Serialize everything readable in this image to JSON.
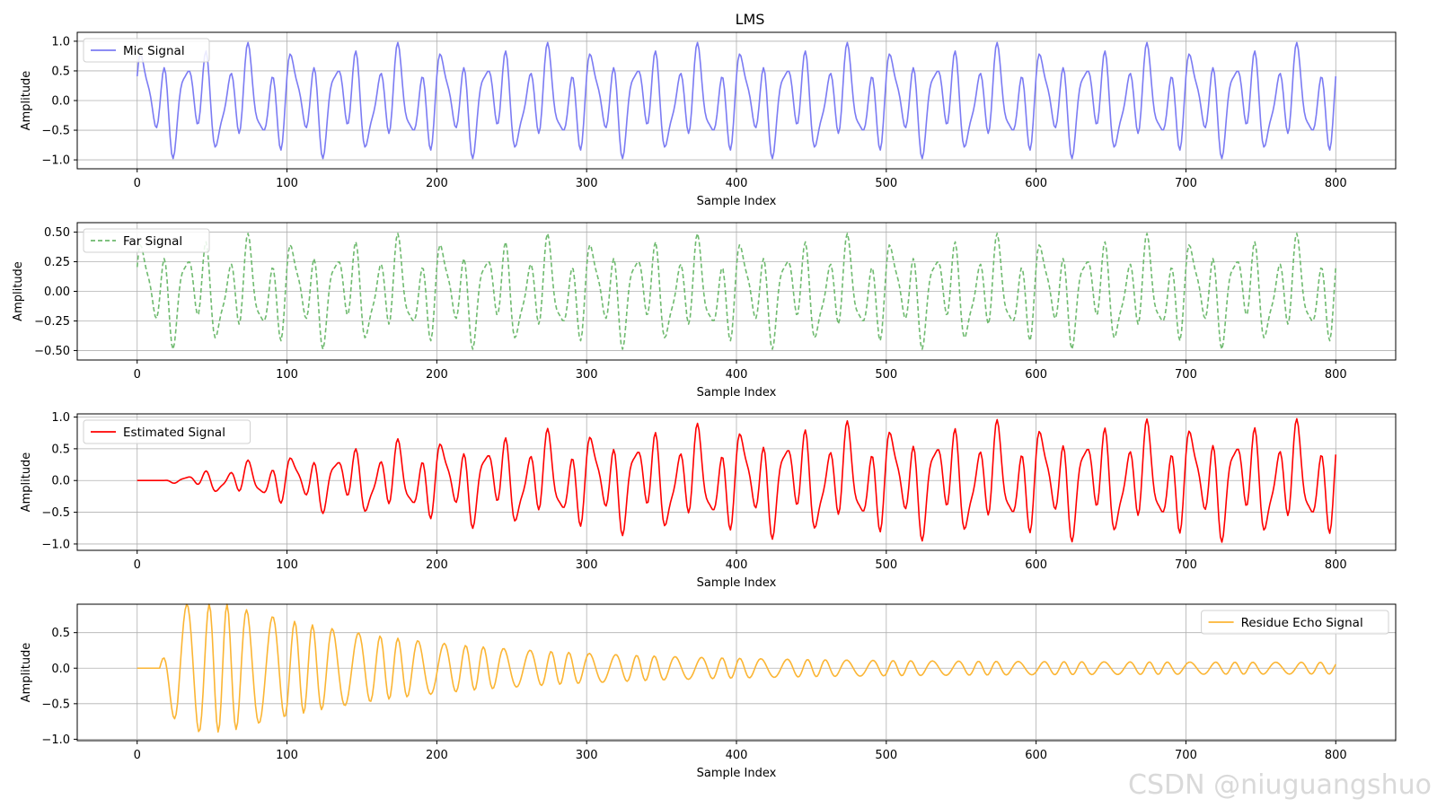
{
  "title": "LMS",
  "watermark": "CSDN @niuguangshuo",
  "chart_data": [
    {
      "type": "line",
      "generator": "mic",
      "ylabel": "Amplitude",
      "xlabel": "Sample Index",
      "xlim": [
        -40,
        840
      ],
      "ylim": [
        -1.15,
        1.15
      ],
      "xticks": [
        0,
        100,
        200,
        300,
        400,
        500,
        600,
        700,
        800
      ],
      "yticks": [
        -1.0,
        -0.5,
        0.0,
        0.5,
        1.0
      ],
      "ytick_labels": [
        "−1.0",
        "−0.5",
        "0.0",
        "0.5",
        "1.0"
      ],
      "grid": true,
      "legend_position": "upper-left",
      "series": [
        {
          "name": "Mic Signal",
          "color": "#7b7bf3",
          "dash": "solid",
          "amplitude": 1.0,
          "period": 100,
          "length": 800
        }
      ]
    },
    {
      "type": "line",
      "generator": "far",
      "ylabel": "Amplitude",
      "xlabel": "Sample Index",
      "xlim": [
        -40,
        840
      ],
      "ylim": [
        -0.58,
        0.58
      ],
      "xticks": [
        0,
        100,
        200,
        300,
        400,
        500,
        600,
        700,
        800
      ],
      "yticks": [
        -0.5,
        -0.25,
        0.0,
        0.25,
        0.5
      ],
      "ytick_labels": [
        "−0.50",
        "−0.25",
        "0.00",
        "0.25",
        "0.50"
      ],
      "grid": true,
      "legend_position": "upper-left",
      "series": [
        {
          "name": "Far Signal",
          "color": "#6fba6f",
          "dash": "dashed",
          "amplitude": 0.5,
          "period": 100,
          "length": 800
        }
      ]
    },
    {
      "type": "line",
      "generator": "estimated",
      "ylabel": "Amplitude",
      "xlabel": "Sample Index",
      "xlim": [
        -40,
        840
      ],
      "ylim": [
        -1.1,
        1.05
      ],
      "xticks": [
        0,
        100,
        200,
        300,
        400,
        500,
        600,
        700,
        800
      ],
      "yticks": [
        -1.0,
        -0.5,
        0.0,
        0.5,
        1.0
      ],
      "ytick_labels": [
        "−1.0",
        "−0.5",
        "0.0",
        "0.5",
        "1.0"
      ],
      "grid": true,
      "legend_position": "upper-left",
      "series": [
        {
          "name": "Estimated Signal",
          "color": "#ff0000",
          "dash": "solid",
          "amplitude_start": 0.0,
          "amplitude_end": 1.0,
          "onset": 18,
          "length": 800
        }
      ]
    },
    {
      "type": "line",
      "generator": "residue",
      "ylabel": "Amplitude",
      "xlabel": "Sample Index",
      "xlim": [
        -40,
        840
      ],
      "ylim": [
        -1.02,
        0.9
      ],
      "xticks": [
        0,
        100,
        200,
        300,
        400,
        500,
        600,
        700,
        800
      ],
      "yticks": [
        -1.0,
        -0.5,
        0.0,
        0.5
      ],
      "ytick_labels": [
        "−1.0",
        "−0.5",
        "0.0",
        "0.5"
      ],
      "grid": true,
      "legend_position": "upper-right",
      "series": [
        {
          "name": "Residue Echo Signal",
          "color": "#fbb534",
          "dash": "solid",
          "peak_amplitude": 0.9,
          "end_amplitude": 0.08,
          "onset": 15,
          "length": 800
        }
      ]
    }
  ]
}
